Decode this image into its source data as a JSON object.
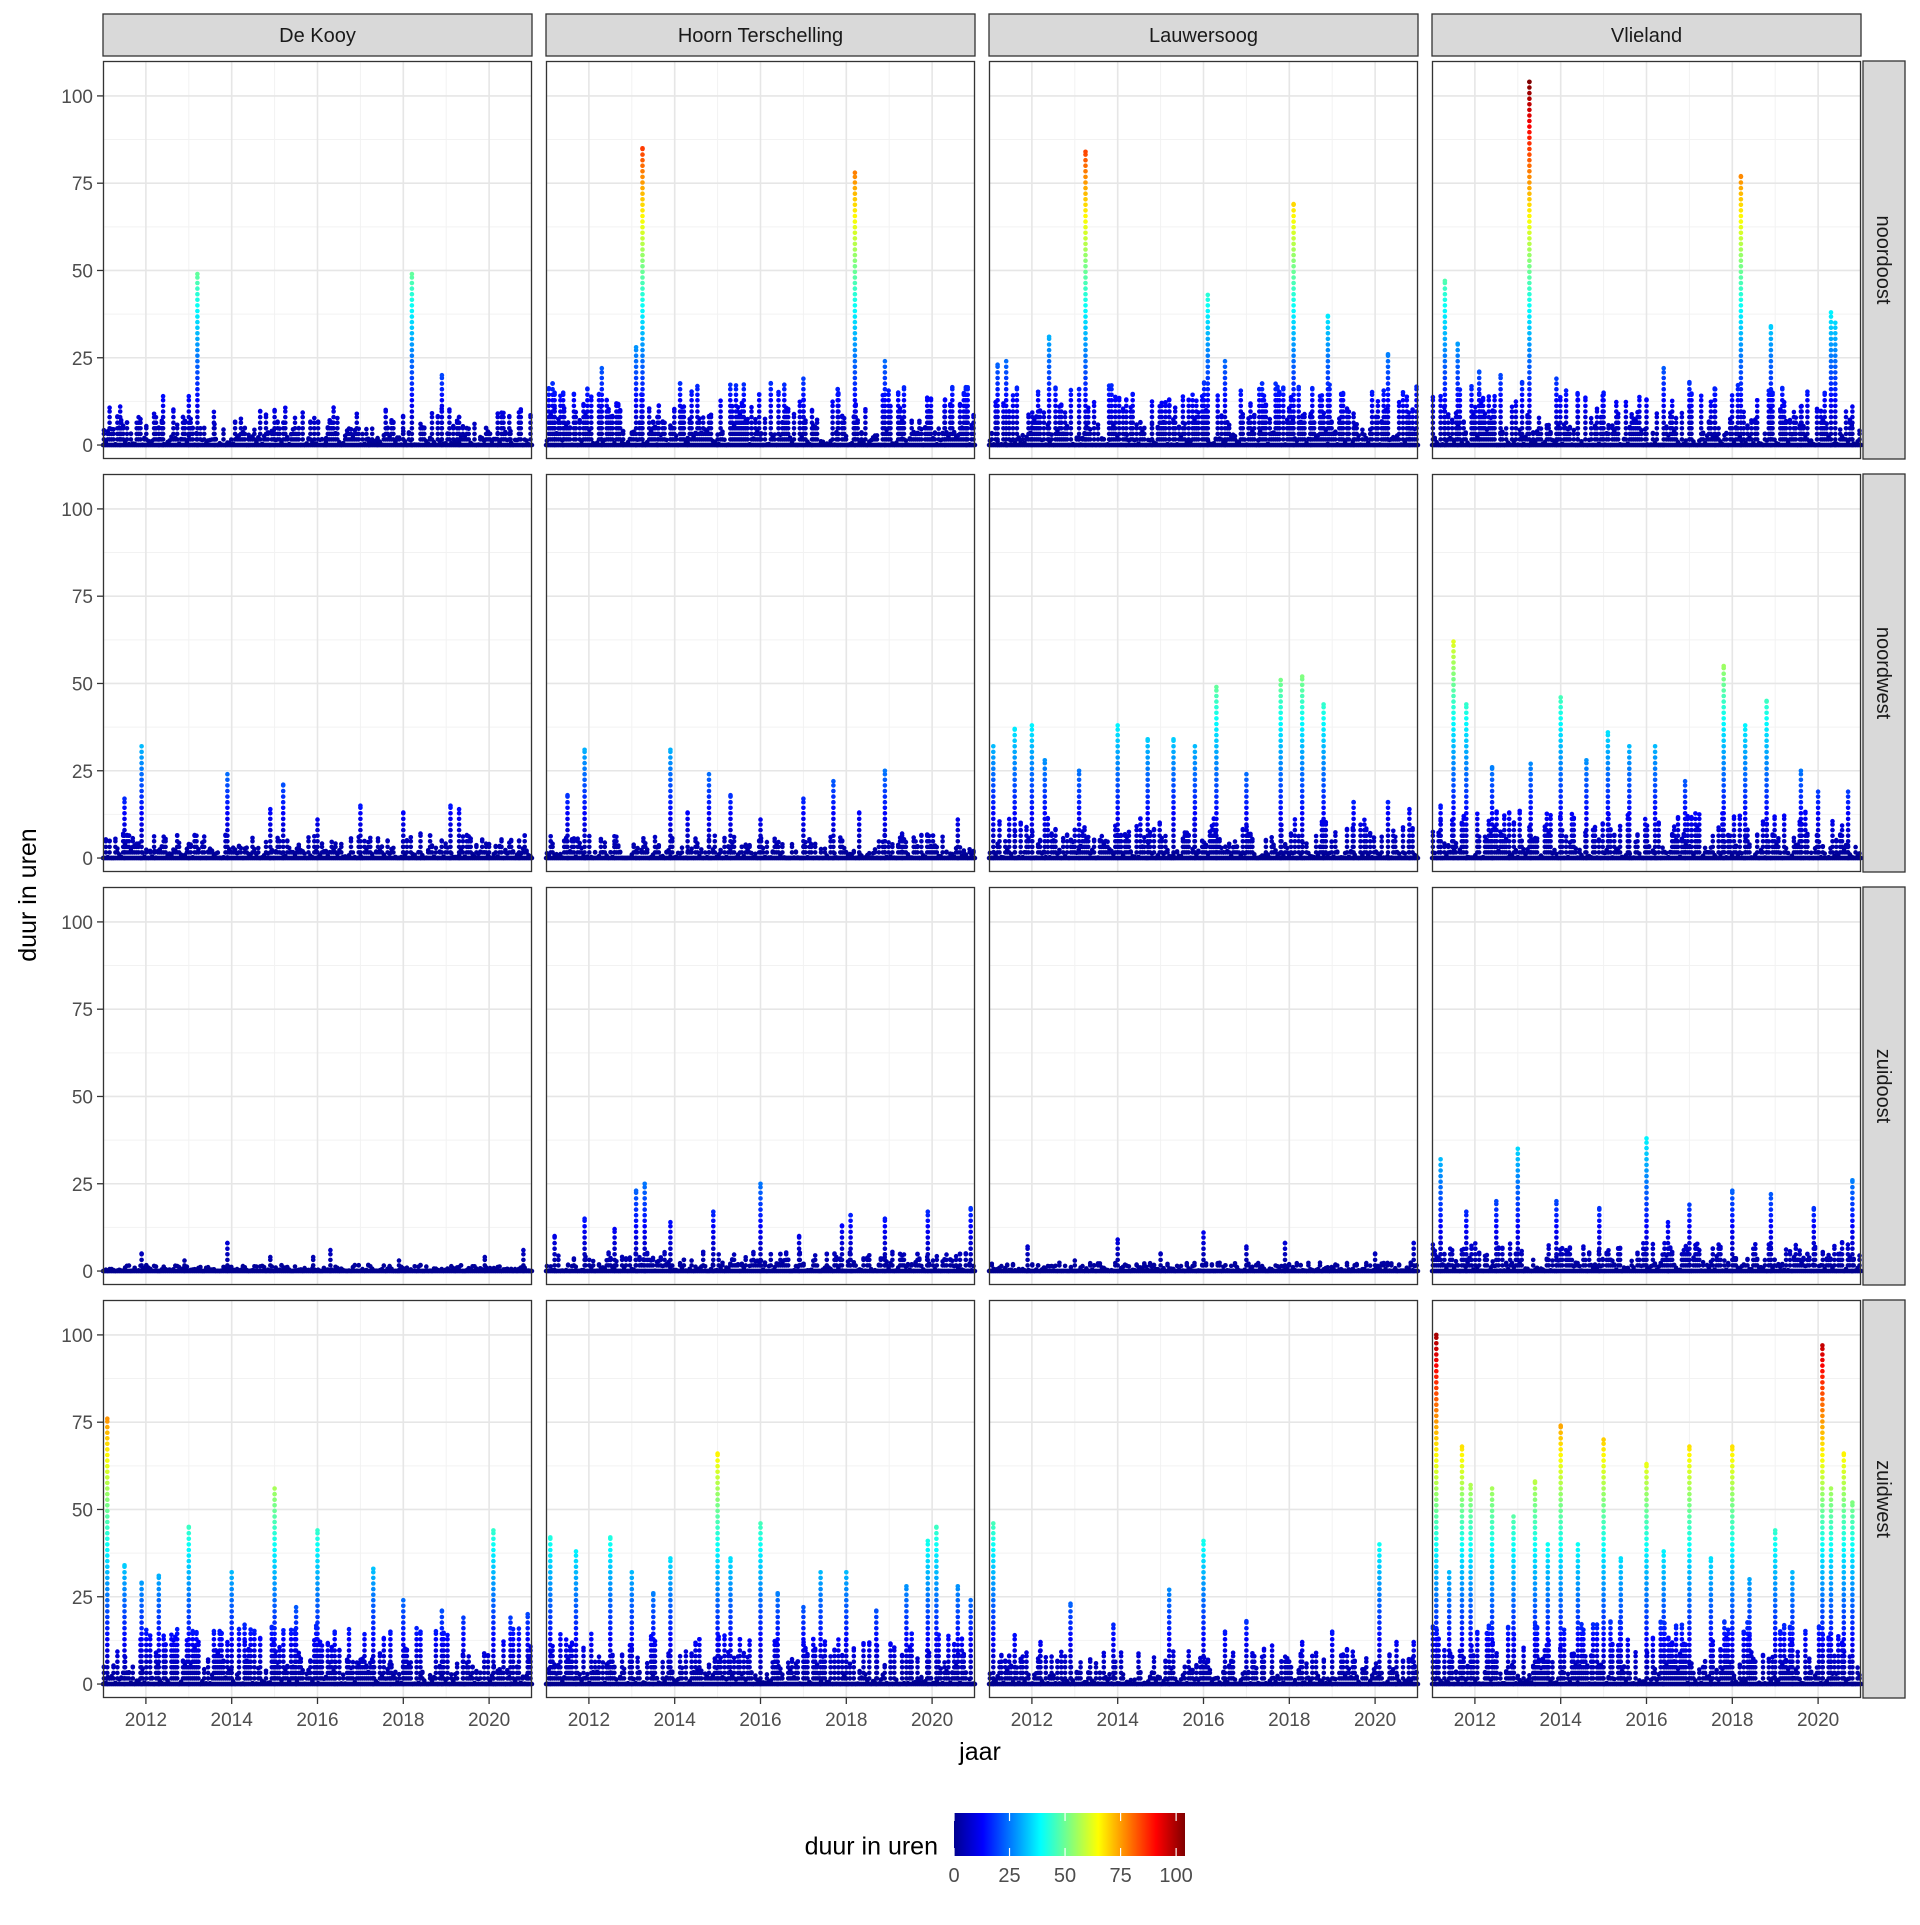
{
  "chart_data": {
    "type": "scatter",
    "layout": "facet-grid",
    "columns": [
      "De Kooy",
      "Hoorn Terschelling",
      "Lauwersoog",
      "Vlieland"
    ],
    "rows": [
      "noordoost",
      "noordwest",
      "zuidoost",
      "zuidwest"
    ],
    "xlabel": "jaar",
    "ylabel": "duur in uren",
    "xlim": [
      2011.0,
      2021.0
    ],
    "ylim": [
      -4,
      110
    ],
    "x_ticks": [
      2012,
      2014,
      2016,
      2018,
      2020
    ],
    "x_tick_labels": [
      "2012",
      "2014",
      "2016",
      "2018",
      "2020"
    ],
    "y_ticks": [
      0,
      25,
      50,
      75,
      100
    ],
    "y_tick_labels": [
      "0",
      "25",
      "50",
      "75",
      "100"
    ],
    "grid": true,
    "legend": {
      "title": "duur in uren",
      "position": "bottom",
      "ticks": [
        0,
        25,
        50,
        75,
        100
      ],
      "tick_labels": [
        "0",
        "25",
        "50",
        "75",
        "100"
      ],
      "range": [
        0,
        104
      ],
      "colors": [
        "#00008F",
        "#0000FF",
        "#0080FF",
        "#00FFFF",
        "#80FF80",
        "#FFFF00",
        "#FF8000",
        "#FF0000",
        "#800000"
      ]
    },
    "panels": {
      "De Kooy|noordoost": [
        [
          2011.4,
          11
        ],
        [
          2012.3,
          5
        ],
        [
          2012.4,
          14
        ],
        [
          2013.0,
          14
        ],
        [
          2013.2,
          49
        ],
        [
          2013.6,
          6
        ],
        [
          2014.4,
          2
        ],
        [
          2015.0,
          10
        ],
        [
          2016.2,
          2
        ],
        [
          2017.2,
          1
        ],
        [
          2017.4,
          2
        ],
        [
          2018.0,
          4
        ],
        [
          2018.2,
          49
        ],
        [
          2018.9,
          20
        ],
        [
          2019.3,
          8
        ],
        [
          2020.2,
          9
        ],
        [
          2020.5,
          4
        ]
      ],
      "Hoorn Terschelling|noordoost": [
        [
          2011.2,
          15
        ],
        [
          2011.4,
          15
        ],
        [
          2012.3,
          22
        ],
        [
          2012.8,
          4
        ],
        [
          2013.1,
          28
        ],
        [
          2013.25,
          85
        ],
        [
          2013.6,
          8
        ],
        [
          2014.3,
          2
        ],
        [
          2015.0,
          3
        ],
        [
          2016.0,
          3
        ],
        [
          2017.0,
          19
        ],
        [
          2017.2,
          10
        ],
        [
          2017.8,
          16
        ],
        [
          2018.2,
          78
        ],
        [
          2018.9,
          24
        ],
        [
          2019.3,
          7
        ],
        [
          2020.3,
          13
        ],
        [
          2020.8,
          11
        ]
      ],
      "Lauwersoog|noordoost": [
        [
          2011.2,
          23
        ],
        [
          2011.4,
          24
        ],
        [
          2012.0,
          5
        ],
        [
          2012.4,
          31
        ],
        [
          2013.1,
          16
        ],
        [
          2013.25,
          84
        ],
        [
          2013.8,
          17
        ],
        [
          2014.2,
          13
        ],
        [
          2014.8,
          6
        ],
        [
          2015.2,
          13
        ],
        [
          2016.1,
          43
        ],
        [
          2016.5,
          24
        ],
        [
          2017.3,
          16
        ],
        [
          2018.1,
          69
        ],
        [
          2018.5,
          9
        ],
        [
          2018.9,
          37
        ],
        [
          2019.5,
          9
        ],
        [
          2020.3,
          26
        ],
        [
          2020.8,
          8
        ]
      ],
      "Vlieland|noordoost": [
        [
          2011.2,
          14
        ],
        [
          2011.3,
          47
        ],
        [
          2011.6,
          29
        ],
        [
          2012.1,
          21
        ],
        [
          2012.6,
          20
        ],
        [
          2013.1,
          18
        ],
        [
          2013.27,
          104
        ],
        [
          2013.9,
          19
        ],
        [
          2014.4,
          13
        ],
        [
          2015.0,
          15
        ],
        [
          2016.0,
          13
        ],
        [
          2016.4,
          22
        ],
        [
          2017.0,
          18
        ],
        [
          2017.6,
          16
        ],
        [
          2018.2,
          77
        ],
        [
          2018.9,
          34
        ],
        [
          2019.6,
          11
        ],
        [
          2020.3,
          38
        ],
        [
          2020.4,
          35
        ],
        [
          2020.8,
          11
        ]
      ],
      "De Kooy|noordwest": [
        [
          2011.5,
          17
        ],
        [
          2011.9,
          32
        ],
        [
          2012.2,
          2
        ],
        [
          2013.0,
          4
        ],
        [
          2013.9,
          24
        ],
        [
          2014.9,
          14
        ],
        [
          2015.2,
          21
        ],
        [
          2016.0,
          11
        ],
        [
          2017.0,
          15
        ],
        [
          2018.0,
          13
        ],
        [
          2018.4,
          7
        ],
        [
          2019.1,
          15
        ],
        [
          2019.3,
          14
        ],
        [
          2020.0,
          4
        ],
        [
          2020.7,
          5
        ]
      ],
      "Hoorn Terschelling|noordwest": [
        [
          2011.5,
          18
        ],
        [
          2011.9,
          31
        ],
        [
          2012.6,
          4
        ],
        [
          2013.1,
          2
        ],
        [
          2013.9,
          31
        ],
        [
          2014.3,
          13
        ],
        [
          2014.8,
          24
        ],
        [
          2015.3,
          18
        ],
        [
          2016.0,
          11
        ],
        [
          2017.0,
          17
        ],
        [
          2017.7,
          22
        ],
        [
          2018.3,
          13
        ],
        [
          2018.9,
          25
        ],
        [
          2019.3,
          7
        ],
        [
          2020.6,
          11
        ]
      ],
      "Lauwersoog|noordwest": [
        [
          2011.1,
          32
        ],
        [
          2011.6,
          37
        ],
        [
          2012.0,
          38
        ],
        [
          2012.3,
          28
        ],
        [
          2013.1,
          25
        ],
        [
          2014.0,
          38
        ],
        [
          2014.7,
          34
        ],
        [
          2015.3,
          34
        ],
        [
          2015.8,
          32
        ],
        [
          2016.3,
          49
        ],
        [
          2017.0,
          24
        ],
        [
          2017.8,
          51
        ],
        [
          2018.3,
          52
        ],
        [
          2018.8,
          44
        ],
        [
          2019.5,
          16
        ],
        [
          2020.3,
          16
        ],
        [
          2020.8,
          14
        ]
      ],
      "Vlieland|noordwest": [
        [
          2011.2,
          15
        ],
        [
          2011.5,
          62
        ],
        [
          2011.8,
          44
        ],
        [
          2012.4,
          26
        ],
        [
          2012.8,
          13
        ],
        [
          2013.3,
          27
        ],
        [
          2014.0,
          46
        ],
        [
          2014.6,
          28
        ],
        [
          2015.1,
          36
        ],
        [
          2015.6,
          32
        ],
        [
          2016.2,
          32
        ],
        [
          2016.9,
          22
        ],
        [
          2017.8,
          55
        ],
        [
          2018.3,
          38
        ],
        [
          2018.8,
          45
        ],
        [
          2019.6,
          25
        ],
        [
          2020.0,
          19
        ],
        [
          2020.7,
          19
        ]
      ],
      "De Kooy|zuidoost": [
        [
          2011.9,
          5
        ],
        [
          2012.9,
          3
        ],
        [
          2013.9,
          8
        ],
        [
          2014.9,
          4
        ],
        [
          2015.9,
          4
        ],
        [
          2016.3,
          6
        ],
        [
          2017.9,
          3
        ],
        [
          2019.9,
          4
        ],
        [
          2020.8,
          6
        ]
      ],
      "Hoorn Terschelling|zuidoost": [
        [
          2011.2,
          10
        ],
        [
          2011.9,
          15
        ],
        [
          2012.6,
          12
        ],
        [
          2013.1,
          23
        ],
        [
          2013.3,
          25
        ],
        [
          2013.9,
          14
        ],
        [
          2014.9,
          17
        ],
        [
          2016.0,
          25
        ],
        [
          2016.9,
          10
        ],
        [
          2017.9,
          13
        ],
        [
          2018.1,
          16
        ],
        [
          2018.9,
          15
        ],
        [
          2019.9,
          17
        ],
        [
          2020.9,
          18
        ]
      ],
      "Lauwersoog|zuidoost": [
        [
          2011.9,
          7
        ],
        [
          2013.0,
          3
        ],
        [
          2014.0,
          9
        ],
        [
          2015.0,
          5
        ],
        [
          2016.0,
          11
        ],
        [
          2017.0,
          7
        ],
        [
          2017.9,
          8
        ],
        [
          2020.0,
          5
        ],
        [
          2020.9,
          8
        ]
      ],
      "Vlieland|zuidoost": [
        [
          2011.2,
          32
        ],
        [
          2011.8,
          17
        ],
        [
          2012.5,
          20
        ],
        [
          2013.0,
          35
        ],
        [
          2013.9,
          20
        ],
        [
          2014.9,
          18
        ],
        [
          2016.0,
          38
        ],
        [
          2016.5,
          14
        ],
        [
          2017.0,
          19
        ],
        [
          2018.0,
          23
        ],
        [
          2018.9,
          22
        ],
        [
          2019.9,
          18
        ],
        [
          2020.8,
          26
        ]
      ],
      "De Kooy|zuidwest": [
        [
          2011.1,
          76
        ],
        [
          2011.5,
          34
        ],
        [
          2011.9,
          29
        ],
        [
          2012.3,
          31
        ],
        [
          2013.0,
          45
        ],
        [
          2014.0,
          32
        ],
        [
          2014.3,
          17
        ],
        [
          2015.0,
          56
        ],
        [
          2015.5,
          22
        ],
        [
          2016.0,
          44
        ],
        [
          2016.4,
          15
        ],
        [
          2017.3,
          33
        ],
        [
          2017.7,
          15
        ],
        [
          2018.0,
          24
        ],
        [
          2018.4,
          15
        ],
        [
          2018.9,
          21
        ],
        [
          2019.4,
          19
        ],
        [
          2020.1,
          44
        ],
        [
          2020.5,
          19
        ],
        [
          2020.9,
          20
        ]
      ],
      "Hoorn Terschelling|zuidwest": [
        [
          2011.1,
          42
        ],
        [
          2011.7,
          38
        ],
        [
          2012.5,
          42
        ],
        [
          2013.0,
          32
        ],
        [
          2013.5,
          26
        ],
        [
          2013.9,
          36
        ],
        [
          2015.0,
          66
        ],
        [
          2015.3,
          36
        ],
        [
          2016.0,
          46
        ],
        [
          2016.4,
          26
        ],
        [
          2017.0,
          22
        ],
        [
          2017.4,
          32
        ],
        [
          2018.0,
          32
        ],
        [
          2018.7,
          21
        ],
        [
          2019.4,
          28
        ],
        [
          2019.9,
          41
        ],
        [
          2020.1,
          45
        ],
        [
          2020.6,
          28
        ],
        [
          2020.9,
          24
        ]
      ],
      "Lauwersoog|zuidwest": [
        [
          2011.1,
          46
        ],
        [
          2011.6,
          14
        ],
        [
          2012.2,
          12
        ],
        [
          2012.9,
          23
        ],
        [
          2013.9,
          17
        ],
        [
          2015.2,
          27
        ],
        [
          2016.0,
          41
        ],
        [
          2016.5,
          15
        ],
        [
          2017.0,
          18
        ],
        [
          2017.6,
          11
        ],
        [
          2018.3,
          12
        ],
        [
          2019.0,
          15
        ],
        [
          2020.1,
          40
        ],
        [
          2020.5,
          12
        ],
        [
          2020.9,
          12
        ]
      ],
      "Vlieland|zuidwest": [
        [
          2011.1,
          100
        ],
        [
          2011.4,
          32
        ],
        [
          2011.7,
          68
        ],
        [
          2011.9,
          57
        ],
        [
          2012.4,
          56
        ],
        [
          2012.9,
          48
        ],
        [
          2013.4,
          58
        ],
        [
          2013.7,
          40
        ],
        [
          2014.0,
          74
        ],
        [
          2014.4,
          40
        ],
        [
          2015.0,
          70
        ],
        [
          2015.4,
          36
        ],
        [
          2016.0,
          63
        ],
        [
          2016.4,
          38
        ],
        [
          2017.0,
          68
        ],
        [
          2017.5,
          36
        ],
        [
          2018.0,
          68
        ],
        [
          2018.4,
          30
        ],
        [
          2019.0,
          44
        ],
        [
          2019.4,
          32
        ],
        [
          2020.1,
          97
        ],
        [
          2020.3,
          56
        ],
        [
          2020.6,
          66
        ],
        [
          2020.8,
          52
        ]
      ]
    }
  }
}
